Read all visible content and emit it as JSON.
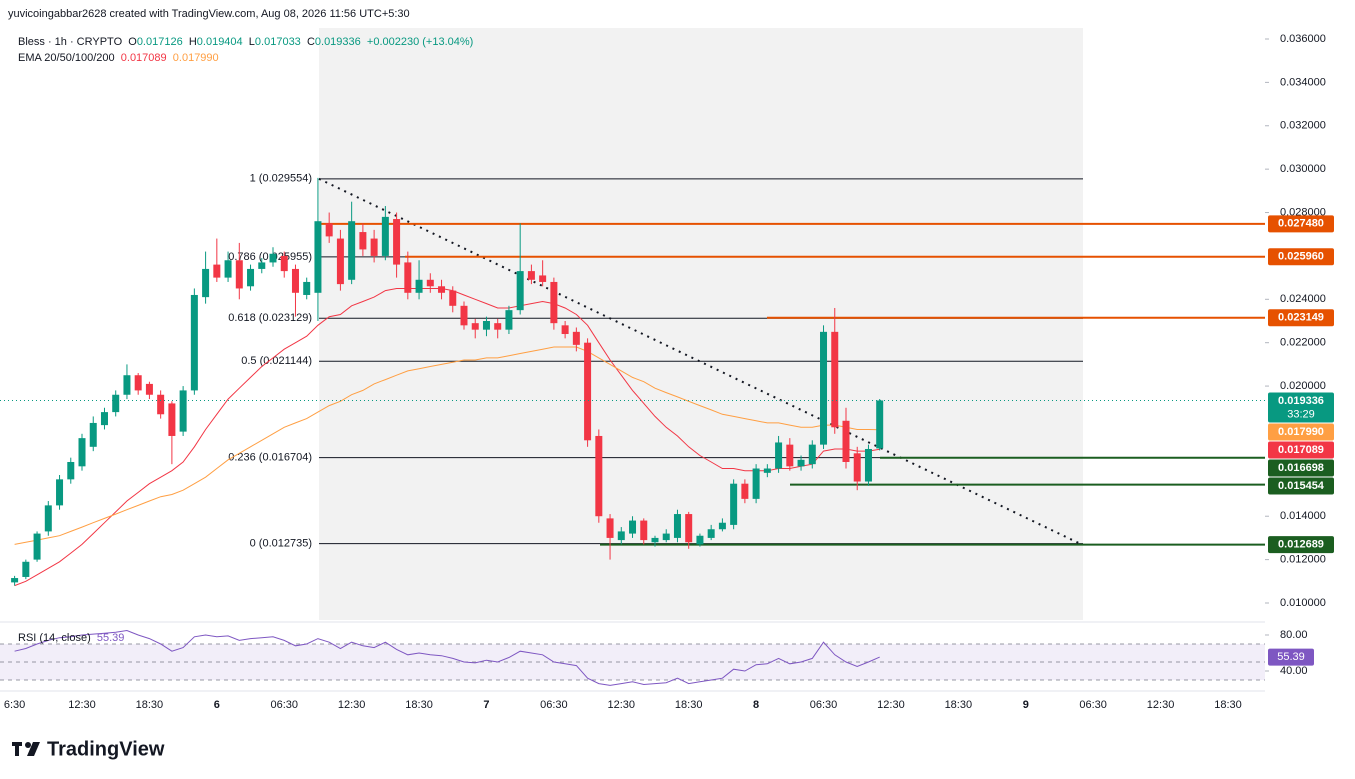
{
  "attribution": "yuvicoingabbar2628 created with TradingView.com, Aug 08, 2026 11:56 UTC+5:30",
  "brand": "TradingView",
  "chart_data": [
    {
      "type": "candlestick",
      "title": "Bless · 1h · CRYPTO",
      "ohlc_labels": [
        "O",
        "H",
        "L",
        "C"
      ],
      "change": "+0.002230 (+13.04%)",
      "indicator": "EMA 20/50/100/200",
      "countdown": "33:29",
      "up_color": "#089981",
      "down_color": "#f23645",
      "categories": [
        "6:30",
        null,
        null,
        null,
        null,
        null,
        "12:30",
        null,
        null,
        null,
        null,
        null,
        "18:30",
        null,
        null,
        null,
        null,
        null,
        "6",
        null,
        null,
        null,
        null,
        null,
        "06:30",
        null,
        null,
        null,
        null,
        null,
        "12:30",
        null,
        null,
        null,
        null,
        null,
        "18:30",
        null,
        null,
        null,
        null,
        null,
        "7",
        null,
        null,
        null,
        null,
        null,
        "06:30",
        null,
        null,
        null,
        null,
        null,
        "12:30",
        null,
        null,
        null,
        null,
        null,
        "18:30",
        null,
        null,
        null,
        null,
        null,
        "8",
        null,
        null,
        null,
        null,
        null,
        "06:30",
        null,
        null,
        null,
        null,
        null,
        "12:30",
        null,
        null,
        null,
        null,
        null,
        "18:30",
        null,
        null,
        null,
        null,
        null,
        "9",
        null,
        null,
        null,
        null,
        null,
        "06:30",
        null,
        null,
        null,
        null,
        null,
        "12:30",
        null,
        null,
        null,
        null,
        null,
        "18:30"
      ],
      "open": [
        0.01095,
        0.0112,
        0.012,
        0.0133,
        0.0145,
        0.0157,
        0.0163,
        0.0172,
        0.0182,
        0.0188,
        0.0196,
        0.0205,
        0.0201,
        0.0196,
        0.0192,
        0.0179,
        0.0198,
        0.0241,
        0.0256,
        0.025,
        0.0258,
        0.0246,
        0.0254,
        0.0257,
        0.026,
        0.0254,
        0.0242,
        0.0243,
        0.0275,
        0.0268,
        0.0249,
        0.0271,
        0.0268,
        0.026,
        0.0277,
        0.0257,
        0.0243,
        0.0249,
        0.0246,
        0.0244,
        0.0237,
        0.0229,
        0.0226,
        0.0229,
        0.0226,
        0.0235,
        0.0253,
        0.0251,
        0.0248,
        0.0228,
        0.0225,
        0.022,
        0.0177,
        0.0139,
        0.0129,
        0.0132,
        0.0138,
        0.0128,
        0.0129,
        0.013,
        0.0141,
        0.0127,
        0.013,
        0.0134,
        0.0136,
        0.0155,
        0.0148,
        0.016,
        0.0162,
        0.0173,
        0.0163,
        0.0164,
        0.0173,
        0.0225,
        0.0184,
        0.0169,
        0.0156,
        0.017126,
        null,
        null,
        null,
        null,
        null,
        null,
        null,
        null,
        null,
        null,
        null,
        null,
        null,
        null,
        null,
        null,
        null,
        null,
        null,
        null,
        null,
        null,
        null,
        null,
        null,
        null,
        null,
        null,
        null,
        null,
        null
      ],
      "high": [
        0.01125,
        0.012,
        0.0133,
        0.0147,
        0.0159,
        0.0167,
        0.0178,
        0.0186,
        0.019,
        0.0198,
        0.021,
        0.0206,
        0.0202,
        0.0198,
        0.0193,
        0.02,
        0.0245,
        0.0262,
        0.0268,
        0.0262,
        0.0266,
        0.0256,
        0.0259,
        0.0264,
        0.0262,
        0.0256,
        0.025,
        0.0296,
        0.028,
        0.0272,
        0.0285,
        0.0275,
        0.0272,
        0.0283,
        0.028,
        0.0262,
        0.0258,
        0.0252,
        0.0249,
        0.0246,
        0.0239,
        0.0231,
        0.0232,
        0.0231,
        0.0237,
        0.0275,
        0.0256,
        0.0258,
        0.025,
        0.023,
        0.0227,
        0.0222,
        0.018,
        0.0141,
        0.0135,
        0.014,
        0.0139,
        0.0131,
        0.0134,
        0.0143,
        0.0142,
        0.0132,
        0.0136,
        0.0139,
        0.0157,
        0.0157,
        0.0164,
        0.0164,
        0.0177,
        0.0176,
        0.0168,
        0.0175,
        0.0228,
        0.0236,
        0.019,
        0.0172,
        0.0173,
        0.019404,
        null,
        null,
        null,
        null,
        null,
        null,
        null,
        null,
        null,
        null,
        null,
        null,
        null,
        null,
        null,
        null,
        null,
        null,
        null,
        null,
        null,
        null,
        null,
        null,
        null,
        null,
        null,
        null,
        null,
        null,
        null
      ],
      "low": [
        0.0108,
        0.0111,
        0.0119,
        0.0131,
        0.0143,
        0.0155,
        0.0161,
        0.017,
        0.018,
        0.0186,
        0.0194,
        0.0196,
        0.0194,
        0.0185,
        0.0164,
        0.0177,
        0.0196,
        0.0238,
        0.0248,
        0.0248,
        0.024,
        0.0244,
        0.0252,
        0.0255,
        0.025,
        0.0232,
        0.024,
        0.023,
        0.0266,
        0.0244,
        0.0247,
        0.026,
        0.0257,
        0.0258,
        0.025,
        0.024,
        0.024,
        0.0243,
        0.024,
        0.0234,
        0.0226,
        0.0222,
        0.0223,
        0.0222,
        0.0224,
        0.0233,
        0.0247,
        0.0246,
        0.0226,
        0.0222,
        0.0216,
        0.0172,
        0.0137,
        0.012,
        0.0127,
        0.013,
        0.0127,
        0.0126,
        0.0128,
        0.0128,
        0.0125,
        0.0126,
        0.0129,
        0.0133,
        0.0134,
        0.0146,
        0.0146,
        0.0158,
        0.016,
        0.0161,
        0.0161,
        0.0162,
        0.0171,
        0.0178,
        0.0162,
        0.0152,
        0.0154,
        0.017033,
        null,
        null,
        null,
        null,
        null,
        null,
        null,
        null,
        null,
        null,
        null,
        null,
        null,
        null,
        null,
        null,
        null,
        null,
        null,
        null,
        null,
        null,
        null,
        null,
        null,
        null,
        null,
        null,
        null,
        null,
        null
      ],
      "close": [
        0.01115,
        0.0119,
        0.0132,
        0.0145,
        0.0157,
        0.0165,
        0.0176,
        0.0183,
        0.0188,
        0.0196,
        0.0205,
        0.0198,
        0.0196,
        0.0187,
        0.0177,
        0.0198,
        0.0242,
        0.0254,
        0.025,
        0.0258,
        0.0245,
        0.0254,
        0.0257,
        0.0261,
        0.0253,
        0.0243,
        0.0248,
        0.0276,
        0.0269,
        0.0247,
        0.0276,
        0.0263,
        0.026,
        0.0278,
        0.0256,
        0.0243,
        0.0249,
        0.0246,
        0.0243,
        0.0237,
        0.0228,
        0.0226,
        0.023,
        0.0226,
        0.0235,
        0.0253,
        0.0249,
        0.0248,
        0.0229,
        0.0224,
        0.0219,
        0.0175,
        0.014,
        0.013,
        0.0133,
        0.0138,
        0.0129,
        0.013,
        0.0132,
        0.0141,
        0.0128,
        0.0131,
        0.0134,
        0.0137,
        0.0155,
        0.0148,
        0.0162,
        0.0162,
        0.0174,
        0.0163,
        0.0166,
        0.0173,
        0.0225,
        0.0181,
        0.0165,
        0.0156,
        0.0171,
        0.019336,
        null,
        null,
        null,
        null,
        null,
        null,
        null,
        null,
        null,
        null,
        null,
        null,
        null,
        null,
        null,
        null,
        null,
        null,
        null,
        null,
        null,
        null,
        null,
        null,
        null,
        null,
        null,
        null,
        null,
        null,
        null
      ],
      "series": [
        {
          "color": "#f23645",
          "last_label": "0.017089",
          "values": [
            0.0108,
            0.011,
            0.0113,
            0.0116,
            0.0119,
            0.0123,
            0.0127,
            0.0132,
            0.0137,
            0.0142,
            0.0147,
            0.0151,
            0.0155,
            0.0158,
            0.0161,
            0.0165,
            0.0172,
            0.018,
            0.0187,
            0.0194,
            0.0199,
            0.0204,
            0.0209,
            0.0213,
            0.0217,
            0.022,
            0.0223,
            0.0228,
            0.0232,
            0.0233,
            0.0237,
            0.0239,
            0.0241,
            0.0244,
            0.0245,
            0.0245,
            0.0245,
            0.0245,
            0.0245,
            0.0244,
            0.0242,
            0.024,
            0.0238,
            0.0236,
            0.0236,
            0.0237,
            0.0238,
            0.0239,
            0.0238,
            0.0236,
            0.0233,
            0.0228,
            0.022,
            0.0212,
            0.0205,
            0.0198,
            0.0192,
            0.0186,
            0.0181,
            0.0177,
            0.0172,
            0.0168,
            0.0165,
            0.0162,
            0.0162,
            0.0161,
            0.0161,
            0.0161,
            0.0162,
            0.0162,
            0.0163,
            0.0164,
            0.017,
            0.0171,
            0.0171,
            0.017,
            0.017,
            0.017089,
            null,
            null,
            null,
            null,
            null,
            null,
            null,
            null,
            null,
            null,
            null,
            null,
            null,
            null,
            null,
            null,
            null,
            null,
            null,
            null,
            null,
            null,
            null,
            null,
            null,
            null,
            null,
            null,
            null,
            null,
            null
          ]
        },
        {
          "color": "#ff9f43",
          "last_label": "0.017990",
          "values": [
            0.0127,
            0.0128,
            0.0129,
            0.013,
            0.0131,
            0.0133,
            0.0135,
            0.0137,
            0.0139,
            0.0141,
            0.0143,
            0.0145,
            0.0147,
            0.0149,
            0.015,
            0.0152,
            0.0155,
            0.0158,
            0.0162,
            0.0166,
            0.0169,
            0.0172,
            0.0175,
            0.0178,
            0.0181,
            0.0183,
            0.0185,
            0.0188,
            0.0191,
            0.0193,
            0.0196,
            0.0198,
            0.0201,
            0.0203,
            0.0205,
            0.0207,
            0.0208,
            0.0209,
            0.021,
            0.0211,
            0.0212,
            0.0212,
            0.0213,
            0.0213,
            0.0214,
            0.0215,
            0.0216,
            0.0217,
            0.0218,
            0.0218,
            0.0218,
            0.0216,
            0.0213,
            0.021,
            0.0207,
            0.0204,
            0.0202,
            0.0199,
            0.0197,
            0.0195,
            0.0193,
            0.0191,
            0.0189,
            0.0187,
            0.0186,
            0.0185,
            0.0184,
            0.0183,
            0.0183,
            0.0182,
            0.0181,
            0.0181,
            0.0182,
            0.0182,
            0.0181,
            0.018,
            0.018,
            0.01799,
            null,
            null,
            null,
            null,
            null,
            null,
            null,
            null,
            null,
            null,
            null,
            null,
            null,
            null,
            null,
            null,
            null,
            null,
            null,
            null,
            null,
            null,
            null,
            null,
            null,
            null,
            null,
            null,
            null,
            null,
            null
          ]
        }
      ],
      "ylim": [
        0.009216,
        0.036507
      ],
      "yticks": [
        {
          "value": 0.036,
          "label": "0.036000"
        },
        {
          "value": 0.034,
          "label": "0.034000"
        },
        {
          "value": 0.032,
          "label": "0.032000"
        },
        {
          "value": 0.03,
          "label": "0.030000"
        },
        {
          "value": 0.028,
          "label": "0.028000"
        },
        {
          "value": 0.024,
          "label": "0.024000"
        },
        {
          "value": 0.022,
          "label": "0.022000"
        },
        {
          "value": 0.02,
          "label": "0.020000"
        },
        {
          "value": 0.014,
          "label": "0.014000"
        },
        {
          "value": 0.012,
          "label": "0.012000"
        },
        {
          "value": 0.01,
          "label": "0.010000"
        }
      ],
      "fib_levels": [
        {
          "value": 0.029554,
          "label": "1 (0.029554)"
        },
        {
          "value": 0.025955,
          "label": "0.786 (0.025955)"
        },
        {
          "value": 0.023129,
          "label": "0.618 (0.023129)"
        },
        {
          "value": 0.021144,
          "label": "0.5 (0.021144)"
        },
        {
          "value": 0.016704,
          "label": "0.236 (0.016704)"
        },
        {
          "value": 0.012735,
          "label": "0 (0.012735)"
        }
      ],
      "price_lines": [
        {
          "value": 0.02748,
          "label": "0.027480",
          "color": "#e65100"
        },
        {
          "value": 0.02596,
          "label": "0.025960",
          "color": "#e65100"
        },
        {
          "value": 0.023149,
          "label": "0.023149",
          "color": "#e65100"
        },
        {
          "value": 0.016698,
          "label": "0.016698",
          "color": "#1b5e20"
        },
        {
          "value": 0.015454,
          "label": "0.015454",
          "color": "#1b5e20"
        },
        {
          "value": 0.012689,
          "label": "0.012689",
          "color": "#1b5e20"
        }
      ]
    },
    {
      "type": "line",
      "title": "RSI (14, close)",
      "color": "#7e57c2",
      "values": [
        62,
        65,
        70,
        74,
        77,
        78,
        80,
        81,
        82,
        83,
        85,
        80,
        76,
        70,
        62,
        66,
        78,
        80,
        78,
        79,
        74,
        76,
        77,
        78,
        74,
        68,
        70,
        76,
        72,
        65,
        72,
        68,
        66,
        72,
        64,
        58,
        60,
        58,
        57,
        54,
        50,
        49,
        52,
        50,
        55,
        62,
        60,
        58,
        50,
        48,
        46,
        32,
        26,
        24,
        26,
        28,
        25,
        26,
        27,
        32,
        26,
        28,
        30,
        32,
        42,
        40,
        47,
        48,
        54,
        48,
        50,
        54,
        72,
        58,
        50,
        45,
        50,
        55.39,
        null,
        null,
        null,
        null,
        null,
        null,
        null,
        null,
        null,
        null,
        null,
        null,
        null,
        null,
        null,
        null,
        null,
        null,
        null,
        null,
        null,
        null,
        null,
        null,
        null,
        null,
        null,
        null,
        null,
        null,
        null
      ],
      "ylim": [
        18.9,
        92.2
      ],
      "yticks": [
        {
          "value": 80,
          "label": "80.00"
        },
        {
          "value": 40,
          "label": "40.00"
        }
      ],
      "band": [
        30,
        70
      ],
      "midline": 50
    }
  ]
}
